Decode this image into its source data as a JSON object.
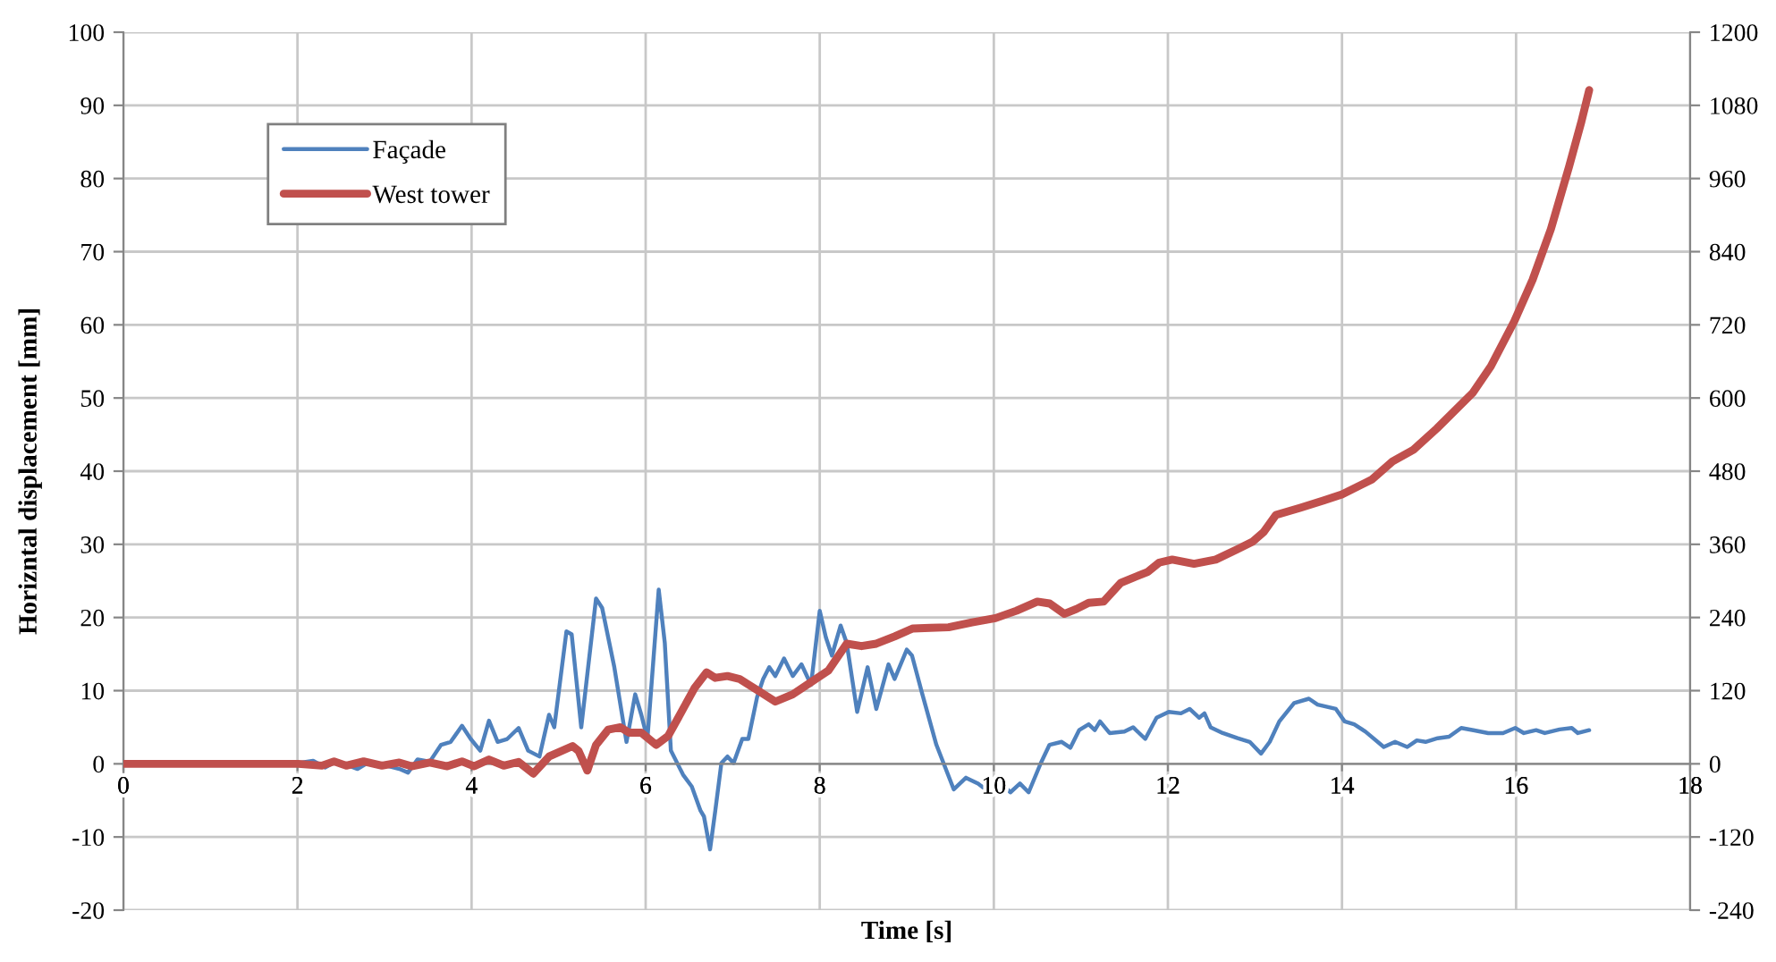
{
  "chart_data": {
    "type": "line",
    "xlabel": "Time [s]",
    "ylabel": "Horizntal displacement [mm]",
    "xlim": [
      0,
      18
    ],
    "xticks": [
      0,
      2,
      4,
      6,
      8,
      10,
      12,
      14,
      16,
      18
    ],
    "ylim": [
      -20,
      100
    ],
    "yticks": [
      -20,
      -10,
      0,
      10,
      20,
      30,
      40,
      50,
      60,
      70,
      80,
      90,
      100
    ],
    "y2lim": [
      -240,
      1200
    ],
    "y2ticks": [
      -240,
      -120,
      0,
      120,
      240,
      360,
      480,
      600,
      720,
      840,
      960,
      1080,
      1200
    ],
    "grid": true,
    "legend": "top left",
    "line_style": "solid",
    "series": [
      {
        "name": "Façade",
        "color": "#4f81bd",
        "x": [
          2.01,
          2.18,
          2.32,
          2.45,
          2.69,
          2.83,
          3.04,
          3.17,
          3.27,
          3.38,
          3.52,
          3.65,
          3.76,
          3.89,
          3.99,
          4.1,
          4.2,
          4.3,
          4.41,
          4.54,
          4.65,
          4.78,
          4.89,
          4.95,
          5.09,
          5.15,
          5.26,
          5.43,
          5.5,
          5.64,
          5.78,
          5.88,
          5.95,
          6.02,
          6.15,
          6.22,
          6.29,
          6.43,
          6.53,
          6.63,
          6.67,
          6.74,
          6.8,
          6.87,
          6.94,
          7.01,
          7.11,
          7.18,
          7.28,
          7.35,
          7.42,
          7.49,
          7.59,
          7.69,
          7.79,
          7.9,
          8.0,
          8.07,
          8.14,
          8.24,
          8.31,
          8.43,
          8.55,
          8.65,
          8.79,
          8.86,
          9.0,
          9.06,
          9.17,
          9.34,
          9.54,
          9.68,
          9.82,
          9.95,
          10.06,
          10.19,
          10.3,
          10.4,
          10.54,
          10.64,
          10.78,
          10.88,
          10.98,
          11.09,
          11.16,
          11.22,
          11.33,
          11.5,
          11.6,
          11.74,
          11.87,
          12.01,
          12.15,
          12.25,
          12.36,
          12.42,
          12.49,
          12.63,
          12.8,
          12.94,
          13.07,
          13.17,
          13.28,
          13.45,
          13.62,
          13.72,
          13.93,
          14.03,
          14.14,
          14.27,
          14.48,
          14.61,
          14.75,
          14.86,
          14.96,
          15.1,
          15.23,
          15.37,
          15.51,
          15.68,
          15.85,
          15.99,
          16.09,
          16.23,
          16.33,
          16.5,
          16.64,
          16.71,
          16.84
        ],
        "values": [
          0.1,
          0.4,
          -0.5,
          0.4,
          -0.7,
          0.3,
          -0.3,
          -0.7,
          -1.2,
          0.6,
          0.3,
          2.6,
          3.0,
          5.2,
          3.4,
          1.8,
          5.9,
          3.0,
          3.4,
          4.9,
          1.8,
          1.0,
          6.7,
          5.0,
          18.1,
          17.7,
          5.0,
          22.6,
          21.3,
          13.2,
          3.0,
          9.5,
          6.7,
          3.4,
          23.8,
          16.5,
          1.8,
          -1.5,
          -3.1,
          -6.4,
          -7.2,
          -11.7,
          -6.4,
          0.1,
          1.0,
          0.1,
          3.4,
          3.4,
          9.1,
          11.6,
          13.2,
          12.0,
          14.4,
          12.0,
          13.6,
          10.8,
          20.9,
          17.3,
          14.8,
          18.9,
          16.5,
          7.1,
          13.2,
          7.5,
          13.6,
          11.6,
          15.6,
          14.8,
          9.9,
          2.6,
          -3.5,
          -1.9,
          -2.7,
          -3.9,
          -2.3,
          -3.9,
          -2.7,
          -3.9,
          0.1,
          2.6,
          3.0,
          2.2,
          4.6,
          5.4,
          4.6,
          5.8,
          4.2,
          4.4,
          5.0,
          3.4,
          6.3,
          7.1,
          6.9,
          7.5,
          6.3,
          6.9,
          5.0,
          4.2,
          3.5,
          3.0,
          1.4,
          3.0,
          5.8,
          8.3,
          8.9,
          8.1,
          7.5,
          5.8,
          5.4,
          4.4,
          2.3,
          3.0,
          2.3,
          3.2,
          3.0,
          3.5,
          3.7,
          4.9,
          4.6,
          4.2,
          4.2,
          4.9,
          4.2,
          4.6,
          4.2,
          4.7,
          4.9,
          4.2,
          4.6
        ]
      },
      {
        "name": "West tower",
        "color": "#c0504d",
        "axis": "y2",
        "x": [
          0,
          1.8,
          2.01,
          2.28,
          2.42,
          2.56,
          2.76,
          2.97,
          3.17,
          3.31,
          3.52,
          3.72,
          3.89,
          4.03,
          4.2,
          4.37,
          4.54,
          4.71,
          4.89,
          5.16,
          5.23,
          5.33,
          5.43,
          5.57,
          5.71,
          5.81,
          5.95,
          6.12,
          6.26,
          6.43,
          6.56,
          6.7,
          6.8,
          6.94,
          7.08,
          7.28,
          7.49,
          7.69,
          7.9,
          8.1,
          8.31,
          8.48,
          8.65,
          8.86,
          9.07,
          9.27,
          9.48,
          9.75,
          10.02,
          10.26,
          10.5,
          10.64,
          10.81,
          10.95,
          11.09,
          11.26,
          11.46,
          11.77,
          11.9,
          12.05,
          12.3,
          12.55,
          12.8,
          12.97,
          13.1,
          13.24,
          13.52,
          13.79,
          14.0,
          14.34,
          14.58,
          14.82,
          15.09,
          15.5,
          15.71,
          15.98,
          16.19,
          16.4,
          16.61,
          16.75,
          16.84
        ],
        "values": [
          0,
          0,
          0,
          -3,
          4,
          -3,
          4,
          -3,
          2,
          -4,
          2,
          -4,
          4,
          -4,
          7,
          -3,
          3,
          -16,
          12,
          29,
          21,
          -11,
          31,
          56,
          60,
          51,
          51,
          31,
          46,
          90,
          124,
          150,
          141,
          144,
          139,
          121,
          102,
          114,
          134,
          153,
          197,
          193,
          197,
          209,
          222,
          223,
          224,
          232,
          239,
          251,
          266,
          263,
          246,
          254,
          264,
          266,
          297,
          315,
          330,
          335,
          328,
          335,
          352,
          364,
          380,
          408,
          420,
          432,
          442,
          466,
          496,
          515,
          550,
          608,
          652,
          726,
          794,
          877,
          980,
          1053,
          1105
        ]
      }
    ]
  }
}
